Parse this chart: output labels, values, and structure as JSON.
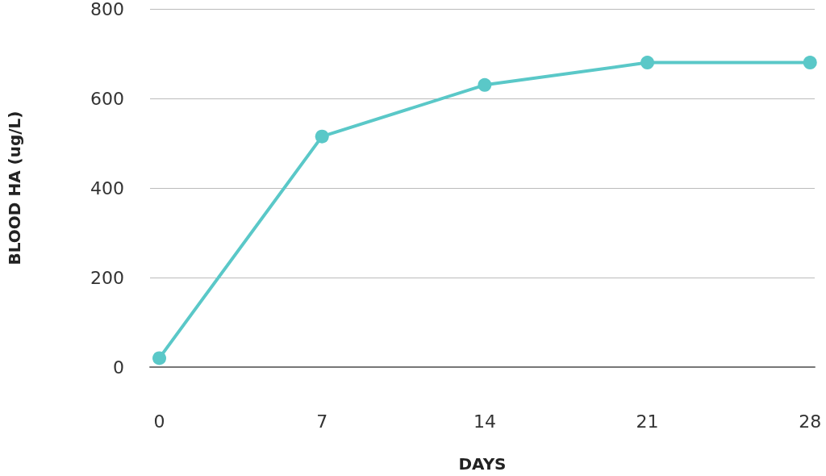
{
  "chart_data": {
    "type": "line",
    "xlabel": "DAYS",
    "ylabel": "BLOOD HA (ug/L)",
    "x": [
      0,
      7,
      14,
      21,
      28
    ],
    "series": [
      {
        "color": "#5ac8c8",
        "values": [
          20,
          515,
          630,
          680,
          680
        ]
      }
    ],
    "xlim": [
      -0.4,
      28.2
    ],
    "xticks": [
      0,
      7,
      14,
      21,
      28
    ],
    "ylim": [
      0,
      800
    ],
    "yticks": [
      0,
      200,
      400,
      600,
      800
    ],
    "grid": "y",
    "marker": "circle",
    "line_style": "solid"
  }
}
